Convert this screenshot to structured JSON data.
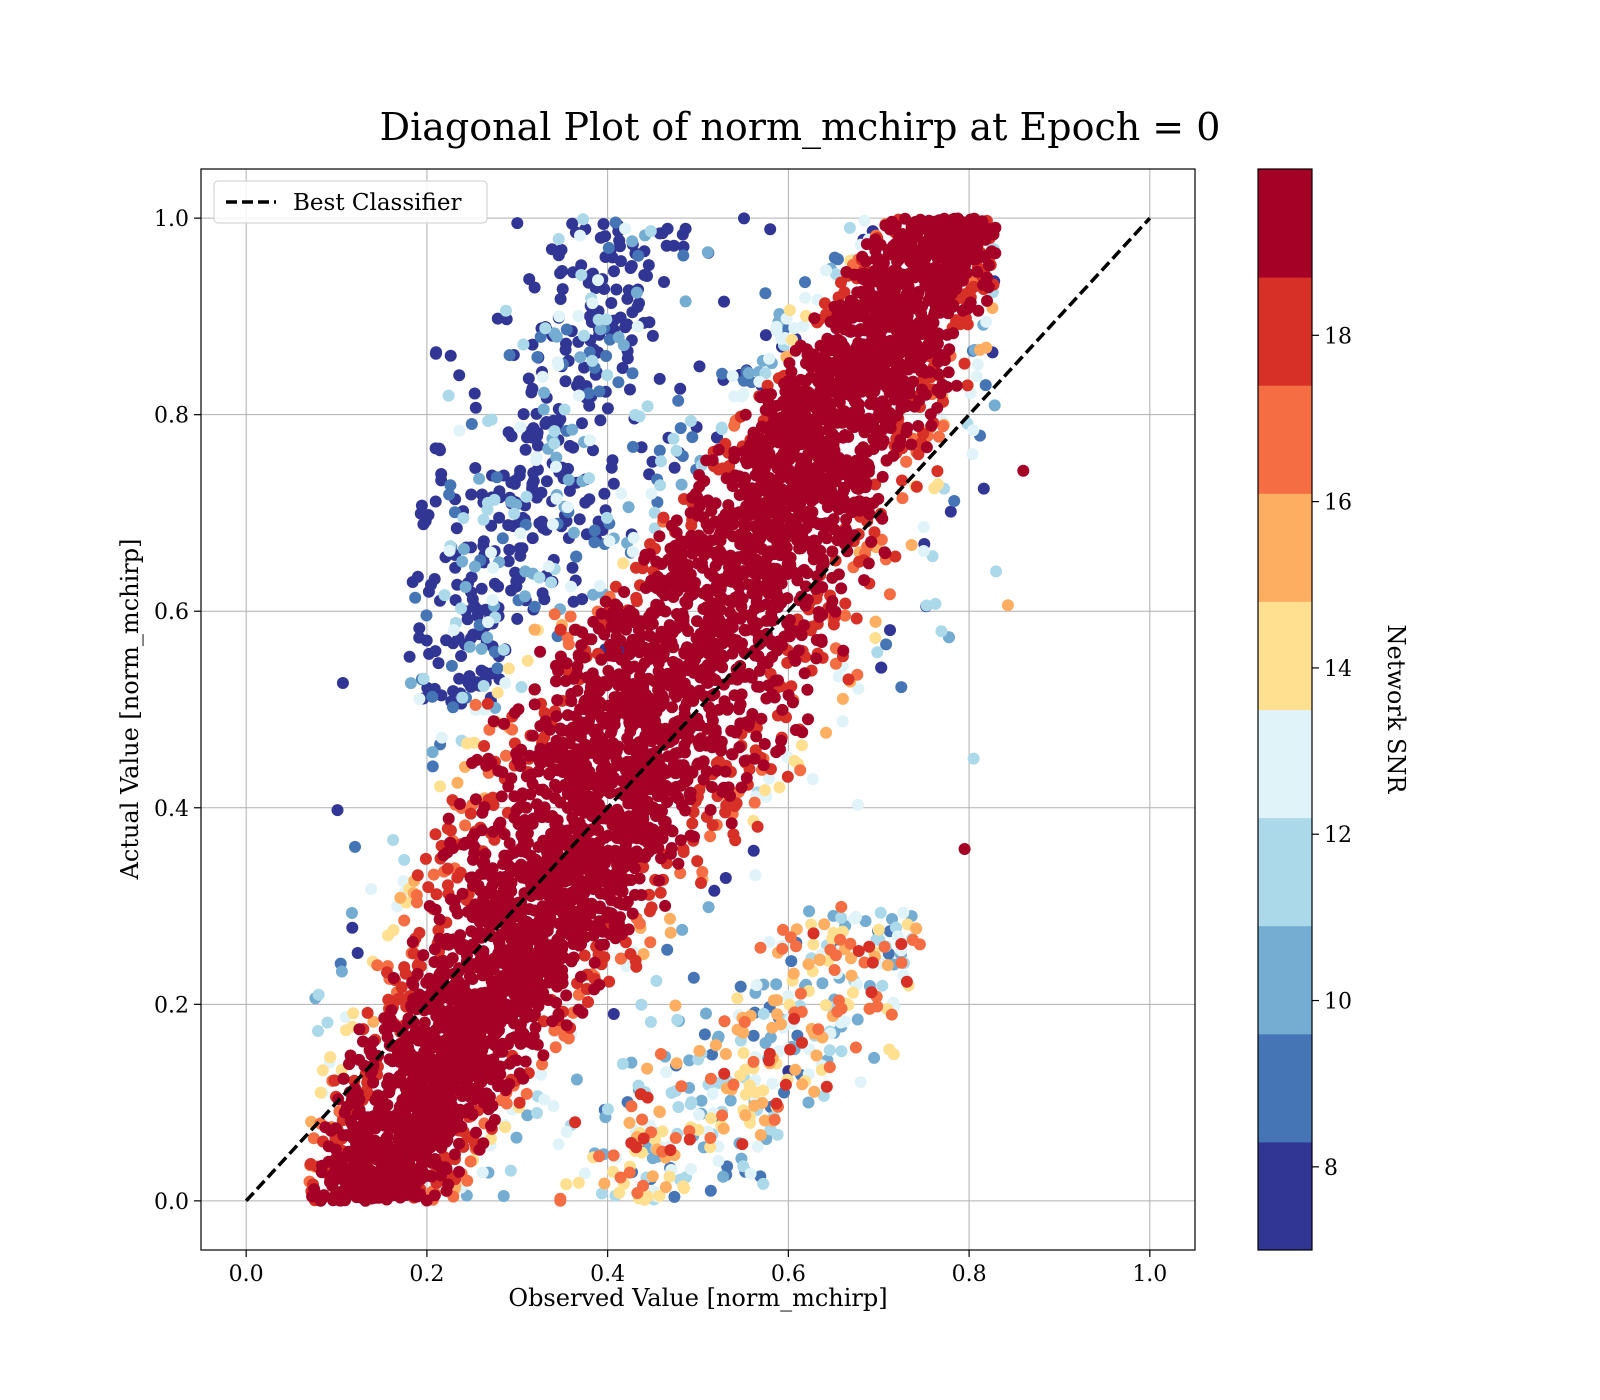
{
  "chart_data": {
    "type": "scatter",
    "title": "Diagonal Plot of norm_mchirp at Epoch = 0",
    "xlabel": "Observed Value [norm_mchirp]",
    "ylabel": "Actual Value [norm_mchirp]",
    "xlim": [
      -0.05,
      1.05
    ],
    "ylim": [
      -0.05,
      1.05
    ],
    "xticks": [
      "0.0",
      "0.2",
      "0.4",
      "0.6",
      "0.8",
      "1.0"
    ],
    "yticks": [
      "0.0",
      "0.2",
      "0.4",
      "0.6",
      "0.8",
      "1.0"
    ],
    "grid": true,
    "legend": {
      "placement": "upper-left",
      "entries": [
        "Best Classifier"
      ]
    },
    "reference_line": {
      "name": "Best Classifier",
      "style": "dashed",
      "color": "#000000",
      "x": [
        0,
        1
      ],
      "y": [
        0,
        1
      ]
    },
    "colorbar": {
      "label": "Network SNR",
      "range": [
        7,
        20
      ],
      "ticks": [
        "8",
        "10",
        "12",
        "14",
        "16",
        "18"
      ],
      "tick_values": [
        8,
        10,
        12,
        14,
        16,
        18
      ],
      "colors": [
        "#313695",
        "#4575b4",
        "#74add1",
        "#abd9e9",
        "#e0f3f8",
        "#fee090",
        "#fdae61",
        "#f46d43",
        "#d73027",
        "#a50026"
      ]
    },
    "sample_points": [
      {
        "x": 0.107,
        "y": 0.527,
        "snr": 7.5
      },
      {
        "x": 0.21,
        "y": 0.862,
        "snr": 7.5
      },
      {
        "x": 0.19,
        "y": 0.635,
        "snr": 7.5
      },
      {
        "x": 0.3,
        "y": 0.995,
        "snr": 7.5
      },
      {
        "x": 0.843,
        "y": 0.606,
        "snr": 15.5
      },
      {
        "x": 0.86,
        "y": 0.743,
        "snr": 19.5
      },
      {
        "x": 0.795,
        "y": 0.358,
        "snr": 19.5
      },
      {
        "x": 0.157,
        "y": 0.005,
        "snr": 19.5
      },
      {
        "x": 0.285,
        "y": 0.005,
        "snr": 10.5
      },
      {
        "x": 0.6,
        "y": 0.132,
        "snr": 7.5
      },
      {
        "x": 0.805,
        "y": 0.45,
        "snr": 11.5
      },
      {
        "x": 0.45,
        "y": 0.025,
        "snr": 15.5
      }
    ]
  }
}
